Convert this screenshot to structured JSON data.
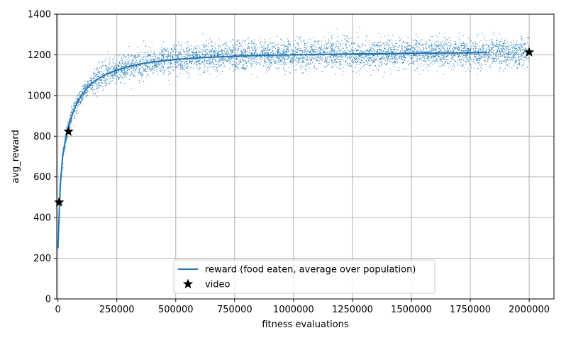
{
  "chart_data": {
    "type": "scatter",
    "xlabel": "fitness evaluations",
    "ylabel": "avg_reward",
    "xlim": [
      -5000,
      2105000
    ],
    "ylim": [
      0,
      1400
    ],
    "xticks": [
      0,
      250000,
      500000,
      750000,
      1000000,
      1250000,
      1500000,
      1750000,
      2000000
    ],
    "xtick_labels": [
      "0",
      "250000",
      "500000",
      "750000",
      "1000000",
      "1250000",
      "1500000",
      "1750000",
      "2000000"
    ],
    "yticks": [
      0,
      200,
      400,
      600,
      800,
      1000,
      1200,
      1400
    ],
    "ytick_labels": [
      "0",
      "200",
      "400",
      "600",
      "800",
      "1000",
      "1200",
      "1400"
    ],
    "grid": true,
    "legend": {
      "placement": "bottom-center"
    },
    "series": [
      {
        "name": "reward (food eaten, average over population)",
        "kind": "line",
        "color": "#1f77b4",
        "x": [
          0,
          10000,
          20000,
          40000,
          60000,
          80000,
          100000,
          130000,
          160000,
          200000,
          250000,
          300000,
          350000,
          400000,
          500000,
          600000,
          750000,
          900000,
          1000000,
          1250000,
          1500000,
          1750000,
          1820000
        ],
        "y": [
          250,
          560,
          700,
          830,
          905,
          960,
          1000,
          1045,
          1075,
          1102,
          1125,
          1143,
          1155,
          1165,
          1177,
          1186,
          1193,
          1198,
          1200,
          1204,
          1208,
          1210,
          1211
        ]
      },
      {
        "name": "video",
        "kind": "markers",
        "marker": "star",
        "color": "#000000",
        "x": [
          5000,
          45000,
          2000000
        ],
        "y": [
          475,
          823,
          1213
        ]
      }
    ],
    "scatter_samples": {
      "color": "#1f77b4",
      "count": 5200,
      "noise_std": 35,
      "follows_series": 0,
      "x_range": [
        0,
        2000000
      ]
    }
  }
}
